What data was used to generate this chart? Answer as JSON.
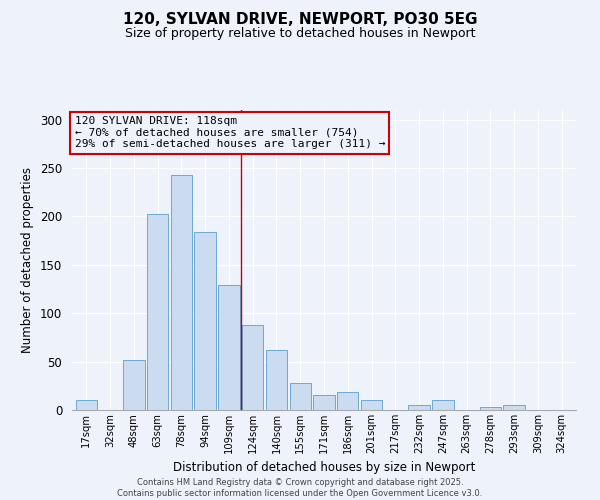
{
  "title": "120, SYLVAN DRIVE, NEWPORT, PO30 5EG",
  "subtitle": "Size of property relative to detached houses in Newport",
  "xlabel": "Distribution of detached houses by size in Newport",
  "ylabel": "Number of detached properties",
  "bar_labels": [
    "17sqm",
    "32sqm",
    "48sqm",
    "63sqm",
    "78sqm",
    "94sqm",
    "109sqm",
    "124sqm",
    "140sqm",
    "155sqm",
    "171sqm",
    "186sqm",
    "201sqm",
    "217sqm",
    "232sqm",
    "247sqm",
    "263sqm",
    "278sqm",
    "293sqm",
    "309sqm",
    "324sqm"
  ],
  "bar_values": [
    10,
    0,
    52,
    203,
    243,
    184,
    129,
    88,
    62,
    28,
    16,
    19,
    10,
    0,
    5,
    10,
    0,
    3,
    5,
    0,
    0
  ],
  "bar_color": "#ccdcf0",
  "bar_edge_color": "#6aaad4",
  "vline_color": "#cc0000",
  "vline_x": 6.5,
  "annotation_box_text": "120 SYLVAN DRIVE: 118sqm\n← 70% of detached houses are smaller (754)\n29% of semi-detached houses are larger (311) →",
  "annotation_box_color": "#cc0000",
  "background_color": "#eef2fb",
  "footer_line1": "Contains HM Land Registry data © Crown copyright and database right 2025.",
  "footer_line2": "Contains public sector information licensed under the Open Government Licence v3.0.",
  "ylim": [
    0,
    310
  ],
  "yticks": [
    0,
    50,
    100,
    150,
    200,
    250,
    300
  ],
  "title_fontsize": 11,
  "subtitle_fontsize": 9
}
